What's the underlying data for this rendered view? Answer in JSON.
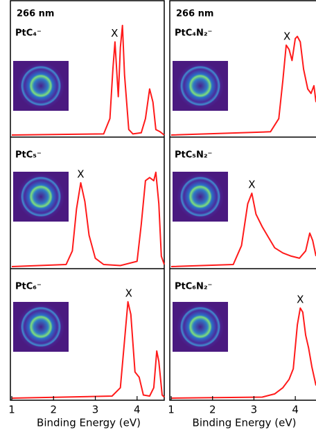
{
  "chart_data": [
    {
      "type": "line",
      "subtitle": "266 nm",
      "label": "PtC₄⁻",
      "x": [
        1.0,
        3.2,
        3.35,
        3.42,
        3.47,
        3.55,
        3.6,
        3.65,
        3.7,
        3.8,
        3.9,
        4.1,
        4.2,
        4.3,
        4.38,
        4.45,
        4.55,
        4.65
      ],
      "series": [
        {
          "color": "#ff1a1a",
          "values": [
            0.0,
            0.01,
            0.15,
            0.6,
            0.85,
            0.35,
            0.8,
            1.0,
            0.55,
            0.05,
            0.01,
            0.02,
            0.15,
            0.42,
            0.3,
            0.05,
            0.03,
            0.0
          ]
        }
      ],
      "annotation": {
        "text": "X",
        "x": 3.46
      },
      "xlim": [
        1,
        4.65
      ],
      "ylim": [
        0,
        1.15
      ]
    },
    {
      "type": "line",
      "label": "PtC₅⁻",
      "x": [
        1.0,
        2.3,
        2.45,
        2.55,
        2.65,
        2.75,
        2.85,
        3.0,
        3.2,
        3.6,
        4.0,
        4.1,
        4.2,
        4.3,
        4.4,
        4.45,
        4.52,
        4.58,
        4.65
      ],
      "series": [
        {
          "color": "#ff1a1a",
          "values": [
            0.0,
            0.02,
            0.15,
            0.55,
            0.8,
            0.62,
            0.3,
            0.08,
            0.02,
            0.01,
            0.05,
            0.4,
            0.82,
            0.85,
            0.82,
            0.9,
            0.6,
            0.1,
            0.02
          ]
        }
      ],
      "annotation": {
        "text": "X",
        "x": 2.65
      },
      "xlim": [
        1,
        4.65
      ],
      "ylim": [
        0,
        1.15
      ]
    },
    {
      "type": "line",
      "label": "PtC₆⁻",
      "x": [
        1.0,
        3.4,
        3.6,
        3.7,
        3.78,
        3.85,
        3.95,
        4.05,
        4.15,
        4.3,
        4.4,
        4.47,
        4.52,
        4.6,
        4.65
      ],
      "series": [
        {
          "color": "#ff1a1a",
          "values": [
            0.0,
            0.02,
            0.1,
            0.55,
            0.92,
            0.8,
            0.25,
            0.2,
            0.03,
            0.02,
            0.1,
            0.45,
            0.35,
            0.03,
            0.01
          ]
        }
      ],
      "annotation": {
        "text": "X",
        "x": 3.8
      },
      "xlim": [
        1,
        4.65
      ],
      "ylim": [
        0,
        1.15
      ],
      "xticks": [
        1,
        2,
        3,
        4
      ],
      "xlabel": "Binding Energy (eV)"
    },
    {
      "type": "line",
      "subtitle": "266 nm",
      "label": "PtC₄N₂⁻",
      "x": [
        1.0,
        3.4,
        3.6,
        3.7,
        3.78,
        3.85,
        3.92,
        4.0,
        4.05,
        4.12,
        4.2,
        4.3,
        4.38,
        4.45,
        4.5
      ],
      "series": [
        {
          "color": "#ff1a1a",
          "values": [
            0.0,
            0.03,
            0.15,
            0.5,
            0.82,
            0.78,
            0.68,
            0.88,
            0.9,
            0.85,
            0.6,
            0.42,
            0.38,
            0.45,
            0.3
          ]
        }
      ],
      "annotation": {
        "text": "X",
        "x": 3.8
      },
      "xlim": [
        1,
        4.5
      ],
      "ylim": [
        0,
        1.15
      ]
    },
    {
      "type": "line",
      "label": "PtC₅N₂⁻",
      "x": [
        1.0,
        2.5,
        2.7,
        2.85,
        2.95,
        3.05,
        3.2,
        3.35,
        3.5,
        3.7,
        3.9,
        4.1,
        4.25,
        4.35,
        4.42,
        4.5
      ],
      "series": [
        {
          "color": "#ff1a1a",
          "values": [
            0.0,
            0.02,
            0.2,
            0.6,
            0.7,
            0.5,
            0.38,
            0.28,
            0.18,
            0.13,
            0.1,
            0.08,
            0.15,
            0.32,
            0.25,
            0.1
          ]
        }
      ],
      "annotation": {
        "text": "X",
        "x": 2.95
      },
      "xlim": [
        1,
        4.5
      ],
      "ylim": [
        0,
        1.15
      ]
    },
    {
      "type": "line",
      "label": "PtC₆N₂⁻",
      "x": [
        1.0,
        3.2,
        3.5,
        3.7,
        3.85,
        3.95,
        4.05,
        4.12,
        4.18,
        4.25,
        4.32,
        4.4,
        4.5
      ],
      "series": [
        {
          "color": "#ff1a1a",
          "values": [
            0.0,
            0.01,
            0.04,
            0.1,
            0.18,
            0.28,
            0.7,
            0.86,
            0.82,
            0.6,
            0.48,
            0.3,
            0.12
          ]
        }
      ],
      "annotation": {
        "text": "X",
        "x": 4.12
      },
      "xlim": [
        1,
        4.5
      ],
      "ylim": [
        0,
        1.15
      ],
      "xticks": [
        1,
        2,
        3,
        4
      ],
      "xlabel": "Binding Energy (eV)"
    }
  ]
}
